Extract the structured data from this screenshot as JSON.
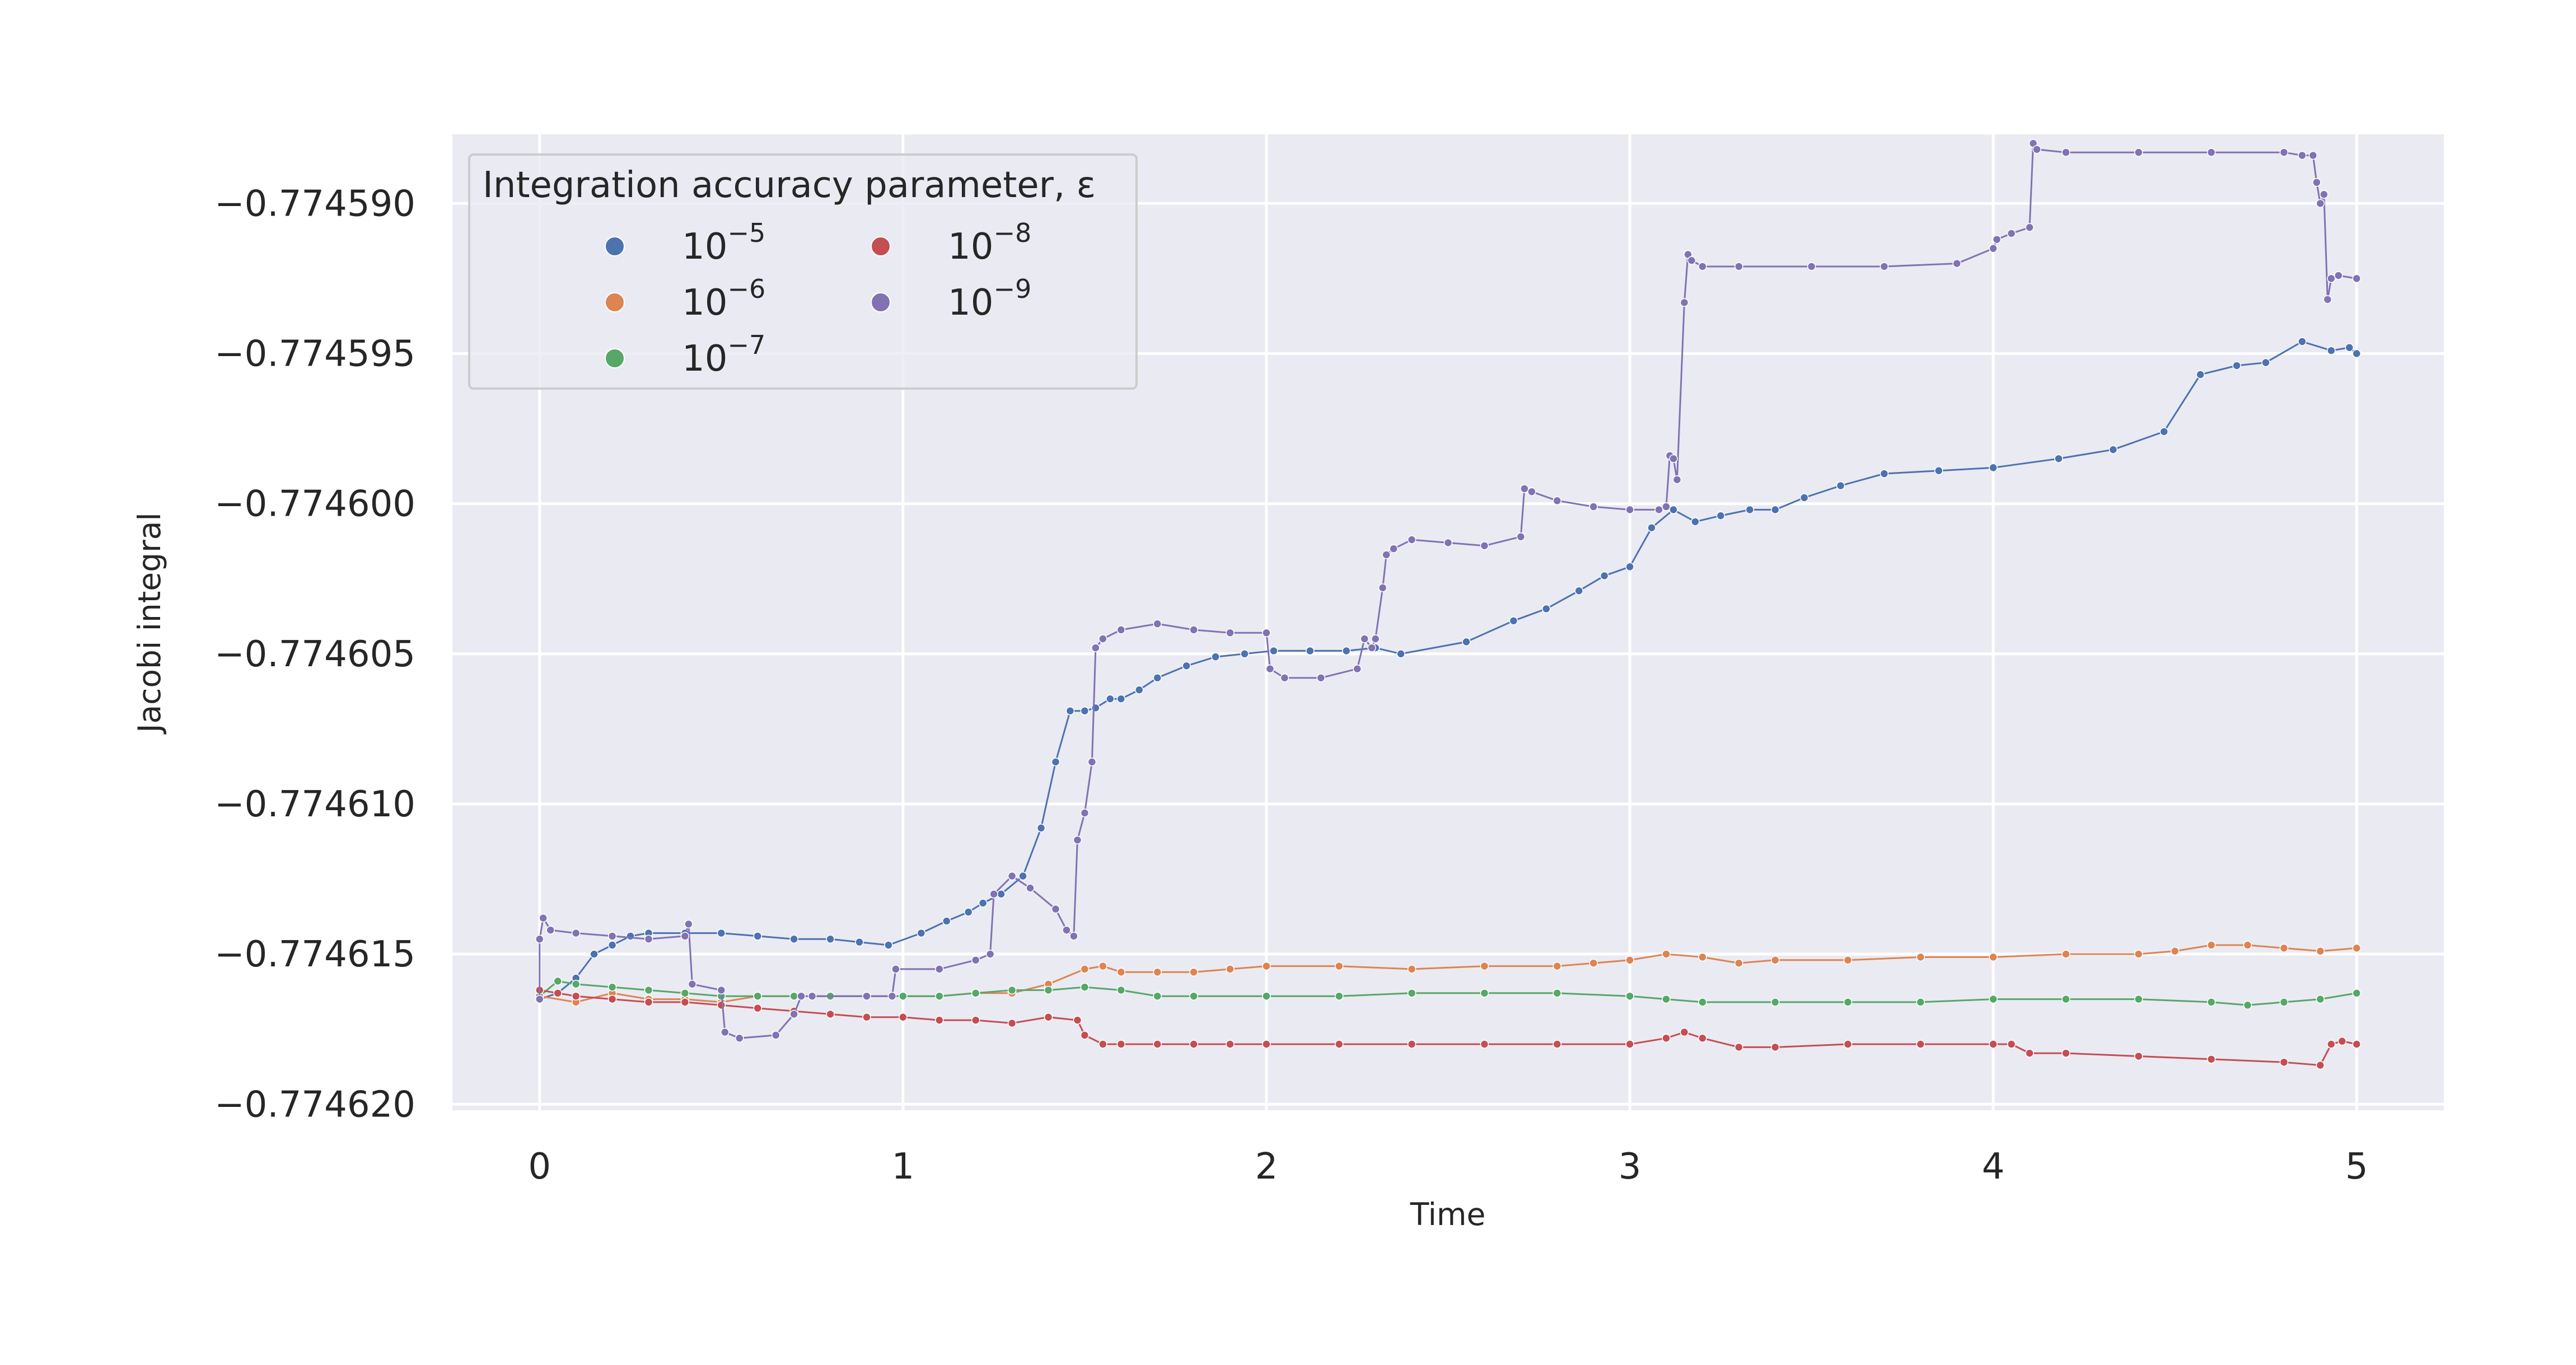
{
  "chart_data": {
    "type": "line",
    "title": "",
    "xlabel": "Time",
    "ylabel": "Jacobi integral",
    "xlim": [
      -0.24,
      5.24
    ],
    "ylim": [
      -0.7746202,
      -0.7745877
    ],
    "xticks": [
      0,
      1,
      2,
      3,
      4,
      5
    ],
    "xtick_labels": [
      "0",
      "1",
      "2",
      "3",
      "4",
      "5"
    ],
    "yticks": [
      -0.77459,
      -0.774595,
      -0.7746,
      -0.774605,
      -0.77461,
      -0.774615,
      -0.77462
    ],
    "ytick_labels": [
      "−0.774590",
      "−0.774595",
      "−0.774600",
      "−0.774605",
      "−0.774610",
      "−0.774615",
      "−0.774620"
    ],
    "grid": true,
    "legend": {
      "title": "Integration accuracy parameter, ε",
      "placement": "upper-left",
      "columns": 2
    },
    "series": [
      {
        "name": "10⁻⁵",
        "base": "10",
        "exp": "−5",
        "color": "#4c72b0",
        "x": [
          0,
          0.05,
          0.1,
          0.15,
          0.2,
          0.25,
          0.3,
          0.4,
          0.5,
          0.6,
          0.7,
          0.8,
          0.88,
          0.96,
          1.05,
          1.12,
          1.18,
          1.22,
          1.27,
          1.33,
          1.38,
          1.42,
          1.46,
          1.5,
          1.53,
          1.57,
          1.6,
          1.65,
          1.7,
          1.78,
          1.86,
          1.94,
          2.02,
          2.12,
          2.22,
          2.3,
          2.37,
          2.55,
          2.68,
          2.77,
          2.86,
          2.93,
          3.0,
          3.06,
          3.12,
          3.18,
          3.25,
          3.33,
          3.4,
          3.48,
          3.58,
          3.7,
          3.85,
          4.0,
          4.18,
          4.33,
          4.47,
          4.57,
          4.67,
          4.75,
          4.85,
          4.93,
          4.98,
          5.0
        ],
        "y": [
          -0.7746165,
          -0.7746163,
          -0.7746158,
          -0.774615,
          -0.7746147,
          -0.7746144,
          -0.7746143,
          -0.7746143,
          -0.7746143,
          -0.7746144,
          -0.7746145,
          -0.7746145,
          -0.7746146,
          -0.7746147,
          -0.7746143,
          -0.7746139,
          -0.7746136,
          -0.7746133,
          -0.774613,
          -0.7746124,
          -0.7746108,
          -0.7746086,
          -0.7746069,
          -0.7746069,
          -0.7746068,
          -0.7746065,
          -0.7746065,
          -0.7746062,
          -0.7746058,
          -0.7746054,
          -0.7746051,
          -0.774605,
          -0.7746049,
          -0.7746049,
          -0.7746049,
          -0.7746048,
          -0.774605,
          -0.7746046,
          -0.7746039,
          -0.7746035,
          -0.7746029,
          -0.7746024,
          -0.7746021,
          -0.7746008,
          -0.7746002,
          -0.7746006,
          -0.7746004,
          -0.7746002,
          -0.7746002,
          -0.7745998,
          -0.7745994,
          -0.774599,
          -0.7745989,
          -0.7745988,
          -0.7745985,
          -0.7745982,
          -0.7745976,
          -0.7745957,
          -0.7745954,
          -0.7745953,
          -0.7745946,
          -0.7745949,
          -0.7745948,
          -0.774595
        ]
      },
      {
        "name": "10⁻⁶",
        "base": "10",
        "exp": "−6",
        "color": "#dd8452",
        "x": [
          0,
          0.1,
          0.2,
          0.3,
          0.4,
          0.5,
          0.6,
          0.7,
          0.8,
          0.9,
          1.0,
          1.1,
          1.2,
          1.3,
          1.4,
          1.5,
          1.55,
          1.6,
          1.7,
          1.8,
          1.9,
          2.0,
          2.2,
          2.4,
          2.6,
          2.8,
          2.9,
          3.0,
          3.1,
          3.2,
          3.3,
          3.4,
          3.6,
          3.8,
          4.0,
          4.2,
          4.4,
          4.5,
          4.6,
          4.7,
          4.8,
          4.9,
          5.0
        ],
        "y": [
          -0.7746164,
          -0.7746166,
          -0.7746163,
          -0.7746165,
          -0.7746165,
          -0.7746166,
          -0.7746164,
          -0.7746164,
          -0.7746164,
          -0.7746164,
          -0.7746164,
          -0.7746164,
          -0.7746163,
          -0.7746163,
          -0.774616,
          -0.7746155,
          -0.7746154,
          -0.7746156,
          -0.7746156,
          -0.7746156,
          -0.7746155,
          -0.7746154,
          -0.7746154,
          -0.7746155,
          -0.7746154,
          -0.7746154,
          -0.7746153,
          -0.7746152,
          -0.774615,
          -0.7746151,
          -0.7746153,
          -0.7746152,
          -0.7746152,
          -0.7746151,
          -0.7746151,
          -0.774615,
          -0.774615,
          -0.7746149,
          -0.7746147,
          -0.7746147,
          -0.7746148,
          -0.7746149,
          -0.7746148
        ]
      },
      {
        "name": "10⁻⁷",
        "base": "10",
        "exp": "−7",
        "color": "#55a868",
        "x": [
          0,
          0.05,
          0.1,
          0.2,
          0.3,
          0.4,
          0.5,
          0.6,
          0.7,
          0.8,
          0.9,
          1.0,
          1.1,
          1.2,
          1.3,
          1.4,
          1.5,
          1.6,
          1.7,
          1.8,
          2.0,
          2.2,
          2.4,
          2.6,
          2.8,
          3.0,
          3.1,
          3.2,
          3.4,
          3.6,
          3.8,
          4.0,
          4.2,
          4.4,
          4.6,
          4.7,
          4.8,
          4.9,
          5.0
        ],
        "y": [
          -0.7746164,
          -0.7746159,
          -0.774616,
          -0.7746161,
          -0.7746162,
          -0.7746163,
          -0.7746164,
          -0.7746164,
          -0.7746164,
          -0.7746164,
          -0.7746164,
          -0.7746164,
          -0.7746164,
          -0.7746163,
          -0.7746162,
          -0.7746162,
          -0.7746161,
          -0.7746162,
          -0.7746164,
          -0.7746164,
          -0.7746164,
          -0.7746164,
          -0.7746163,
          -0.7746163,
          -0.7746163,
          -0.7746164,
          -0.7746165,
          -0.7746166,
          -0.7746166,
          -0.7746166,
          -0.7746166,
          -0.7746165,
          -0.7746165,
          -0.7746165,
          -0.7746166,
          -0.7746167,
          -0.7746166,
          -0.7746165,
          -0.7746163
        ]
      },
      {
        "name": "10⁻⁸",
        "base": "10",
        "exp": "−8",
        "color": "#c44e52",
        "x": [
          0,
          0.05,
          0.1,
          0.2,
          0.3,
          0.4,
          0.5,
          0.6,
          0.7,
          0.8,
          0.9,
          1.0,
          1.1,
          1.2,
          1.3,
          1.4,
          1.48,
          1.5,
          1.55,
          1.6,
          1.7,
          1.8,
          1.9,
          2.0,
          2.2,
          2.4,
          2.6,
          2.8,
          3.0,
          3.1,
          3.15,
          3.2,
          3.3,
          3.4,
          3.6,
          3.8,
          4.0,
          4.05,
          4.1,
          4.2,
          4.4,
          4.6,
          4.8,
          4.9,
          4.93,
          4.96,
          5.0
        ],
        "y": [
          -0.7746162,
          -0.7746163,
          -0.7746164,
          -0.7746165,
          -0.7746166,
          -0.7746166,
          -0.7746167,
          -0.7746168,
          -0.7746169,
          -0.774617,
          -0.7746171,
          -0.7746171,
          -0.7746172,
          -0.7746172,
          -0.7746173,
          -0.7746171,
          -0.7746172,
          -0.7746177,
          -0.774618,
          -0.774618,
          -0.774618,
          -0.774618,
          -0.774618,
          -0.774618,
          -0.774618,
          -0.774618,
          -0.774618,
          -0.774618,
          -0.774618,
          -0.7746178,
          -0.7746176,
          -0.7746178,
          -0.7746181,
          -0.7746181,
          -0.774618,
          -0.774618,
          -0.774618,
          -0.774618,
          -0.7746183,
          -0.7746183,
          -0.7746184,
          -0.7746185,
          -0.7746186,
          -0.7746187,
          -0.774618,
          -0.7746179,
          -0.774618
        ]
      },
      {
        "name": "10⁻⁹",
        "base": "10",
        "exp": "−9",
        "color": "#8172b3",
        "x": [
          0,
          0.0,
          0.01,
          0.03,
          0.1,
          0.2,
          0.3,
          0.4,
          0.41,
          0.42,
          0.5,
          0.51,
          0.55,
          0.65,
          0.7,
          0.72,
          0.75,
          0.9,
          0.97,
          0.98,
          1.1,
          1.2,
          1.24,
          1.25,
          1.3,
          1.35,
          1.42,
          1.45,
          1.47,
          1.48,
          1.5,
          1.52,
          1.53,
          1.55,
          1.6,
          1.7,
          1.8,
          1.9,
          2.0,
          2.01,
          2.05,
          2.15,
          2.25,
          2.27,
          2.29,
          2.3,
          2.32,
          2.33,
          2.35,
          2.4,
          2.5,
          2.6,
          2.7,
          2.71,
          2.73,
          2.8,
          2.9,
          3.0,
          3.08,
          3.1,
          3.11,
          3.12,
          3.13,
          3.15,
          3.16,
          3.17,
          3.2,
          3.3,
          3.5,
          3.7,
          3.9,
          4.0,
          4.01,
          4.05,
          4.1,
          4.11,
          4.12,
          4.2,
          4.4,
          4.6,
          4.8,
          4.85,
          4.88,
          4.89,
          4.9,
          4.91,
          4.92,
          4.93,
          4.95,
          5.0
        ],
        "y": [
          -0.7746165,
          -0.7746145,
          -0.7746138,
          -0.7746142,
          -0.7746143,
          -0.7746144,
          -0.7746145,
          -0.7746144,
          -0.774614,
          -0.774616,
          -0.7746162,
          -0.7746176,
          -0.7746178,
          -0.7746177,
          -0.774617,
          -0.7746164,
          -0.7746164,
          -0.7746164,
          -0.7746164,
          -0.7746155,
          -0.7746155,
          -0.7746152,
          -0.774615,
          -0.774613,
          -0.7746124,
          -0.7746128,
          -0.7746135,
          -0.7746142,
          -0.7746144,
          -0.7746112,
          -0.7746103,
          -0.7746086,
          -0.7746048,
          -0.7746045,
          -0.7746042,
          -0.774604,
          -0.7746042,
          -0.7746043,
          -0.7746043,
          -0.7746055,
          -0.7746058,
          -0.7746058,
          -0.7746055,
          -0.7746045,
          -0.7746048,
          -0.7746045,
          -0.7746028,
          -0.7746017,
          -0.7746015,
          -0.7746012,
          -0.7746013,
          -0.7746014,
          -0.7746011,
          -0.7745995,
          -0.7745996,
          -0.7745999,
          -0.7746001,
          -0.7746002,
          -0.7746002,
          -0.7746001,
          -0.7745984,
          -0.7745985,
          -0.7745992,
          -0.7745933,
          -0.7745917,
          -0.7745919,
          -0.7745921,
          -0.7745921,
          -0.7745921,
          -0.7745921,
          -0.774592,
          -0.7745915,
          -0.7745912,
          -0.774591,
          -0.7745908,
          -0.774588,
          -0.7745882,
          -0.7745883,
          -0.7745883,
          -0.7745883,
          -0.7745883,
          -0.7745884,
          -0.7745884,
          -0.7745893,
          -0.77459,
          -0.7745897,
          -0.7745932,
          -0.7745925,
          -0.7745924,
          -0.7745925
        ]
      }
    ]
  }
}
